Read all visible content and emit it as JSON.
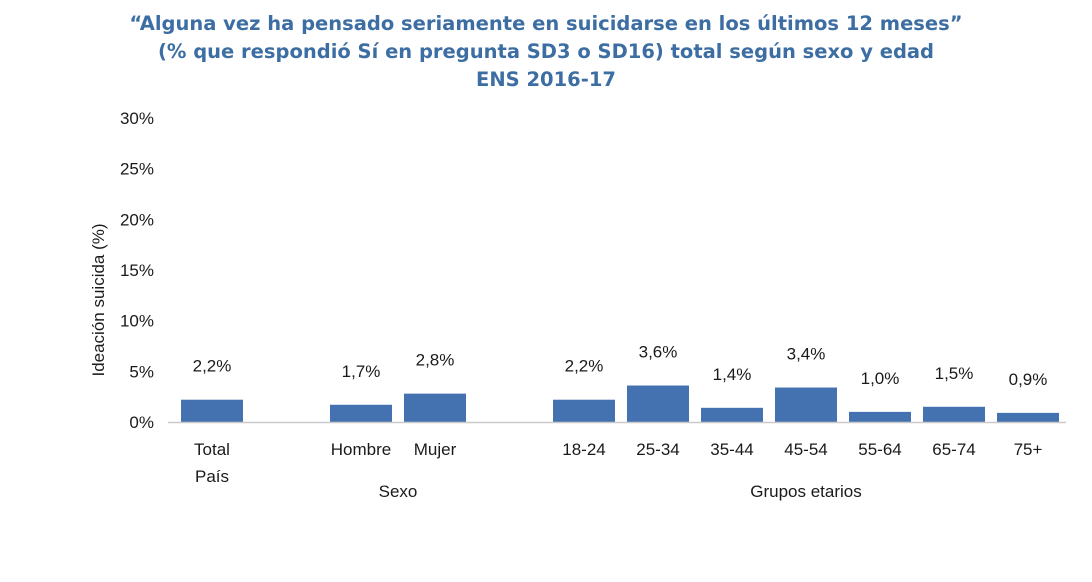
{
  "chart_data": {
    "type": "bar",
    "title": "“Alguna vez ha pensado seriamente en suicidarse en los últimos 12 meses”",
    "subtitle": "(% que respondió Sí en pregunta SD3 o SD16) total según sexo y edad",
    "subtitle2": "ENS  2016-17",
    "ylabel": "Ideación suicida (%)",
    "ylim": [
      0,
      30
    ],
    "yticks": [
      "0%",
      "5%",
      "10%",
      "15%",
      "20%",
      "25%",
      "30%"
    ],
    "categories": [
      "Total\nPaís",
      "Hombre",
      "Mujer",
      "18-24",
      "25-34",
      "35-44",
      "45-54",
      "55-64",
      "65-74",
      "75+"
    ],
    "values": [
      2.2,
      1.7,
      2.8,
      2.2,
      3.6,
      1.4,
      3.4,
      1.0,
      1.5,
      0.9
    ],
    "value_labels": [
      "2,2%",
      "1,7%",
      "2,8%",
      "2,2%",
      "3,6%",
      "1,4%",
      "3,4%",
      "1,0%",
      "1,5%",
      "0,9%"
    ],
    "groups": [
      {
        "label": "",
        "categories": [
          0
        ]
      },
      {
        "label": "Sexo",
        "categories": [
          1,
          2
        ]
      },
      {
        "label": "Grupos etarios",
        "categories": [
          3,
          4,
          5,
          6,
          7,
          8,
          9
        ]
      }
    ],
    "bar_color": "#4472b0",
    "grid": false,
    "legend": "none"
  }
}
